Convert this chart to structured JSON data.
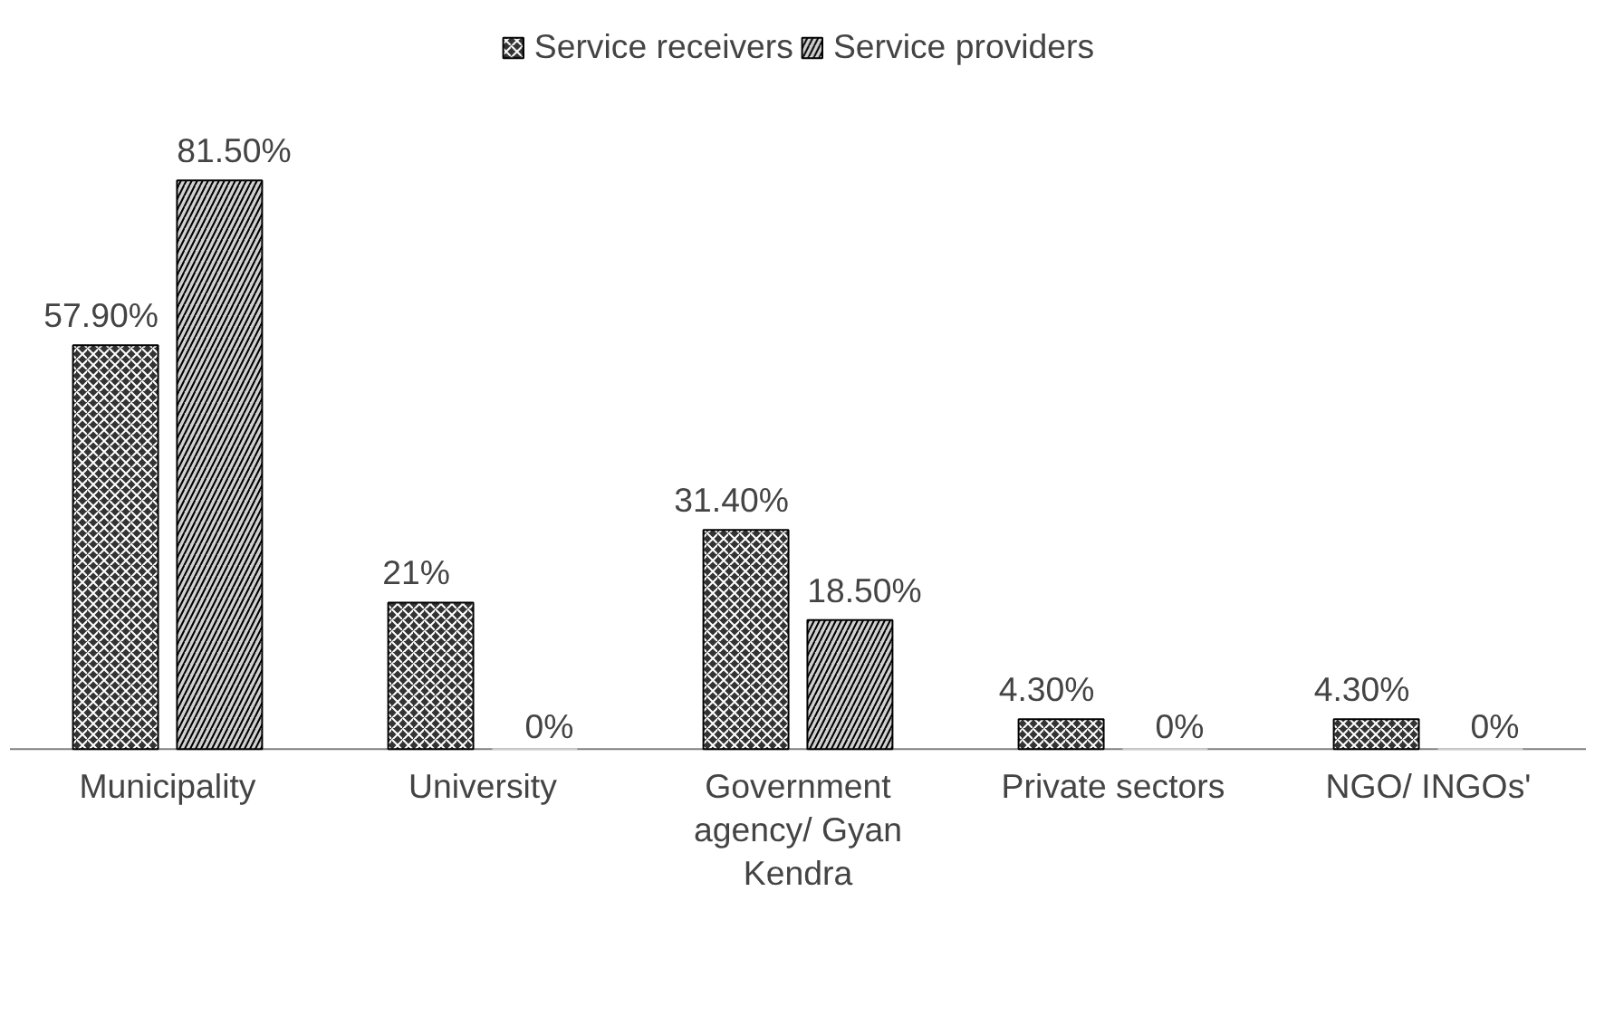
{
  "chart_data": {
    "type": "bar",
    "categories": [
      "Municipality",
      "University",
      "Government agency/ Gyan Kendra",
      "Private sectors",
      "NGO/ INGOs'"
    ],
    "series": [
      {
        "name": "Service receivers",
        "color": "#333333",
        "values": [
          57.9,
          21,
          31.4,
          4.3,
          4.3
        ],
        "value_labels": [
          "57.90%",
          "21%",
          "31.40%",
          "4.30%",
          "4.30%"
        ]
      },
      {
        "name": "Service providers",
        "color": "#d0d0d0",
        "values": [
          81.5,
          0,
          18.5,
          0,
          0
        ],
        "value_labels": [
          "81.50%",
          "0%",
          "18.50%",
          "0%",
          "0%"
        ]
      }
    ],
    "legend": "top",
    "grid": false,
    "tick_labels": "x"
  }
}
